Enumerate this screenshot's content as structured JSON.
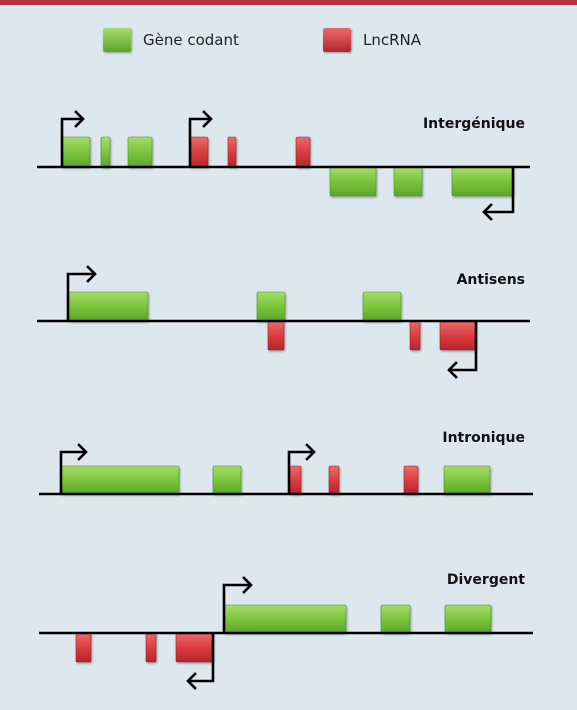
{
  "colors": {
    "background": "#dce8ee",
    "accent_bar": "#b0313f",
    "coding_gene": "#7ec63b",
    "lncrna": "#dd3b3f",
    "axis": "#000000"
  },
  "legend": {
    "coding_label": "Gène codant",
    "lncrna_label": "LncRNA"
  },
  "panels": [
    {
      "title": "Intergénique",
      "features": [
        {
          "kind": "coding",
          "strand": "+"
        },
        {
          "kind": "coding",
          "strand": "+"
        },
        {
          "kind": "coding",
          "strand": "+"
        },
        {
          "kind": "lncrna",
          "strand": "+"
        },
        {
          "kind": "lncrna",
          "strand": "+"
        },
        {
          "kind": "lncrna",
          "strand": "+"
        },
        {
          "kind": "coding",
          "strand": "-"
        },
        {
          "kind": "coding",
          "strand": "-"
        },
        {
          "kind": "coding",
          "strand": "-"
        }
      ]
    },
    {
      "title": "Antisens",
      "features": [
        {
          "kind": "coding",
          "strand": "+"
        },
        {
          "kind": "coding",
          "strand": "+"
        },
        {
          "kind": "coding",
          "strand": "+"
        },
        {
          "kind": "lncrna",
          "strand": "-"
        },
        {
          "kind": "lncrna",
          "strand": "-"
        },
        {
          "kind": "lncrna",
          "strand": "-"
        }
      ]
    },
    {
      "title": "Intronique",
      "features": [
        {
          "kind": "coding",
          "strand": "+"
        },
        {
          "kind": "coding",
          "strand": "+"
        },
        {
          "kind": "lncrna",
          "strand": "+"
        },
        {
          "kind": "lncrna",
          "strand": "+"
        },
        {
          "kind": "lncrna",
          "strand": "+"
        },
        {
          "kind": "coding",
          "strand": "+"
        }
      ]
    },
    {
      "title": "Divergent",
      "features": [
        {
          "kind": "coding",
          "strand": "+"
        },
        {
          "kind": "coding",
          "strand": "+"
        },
        {
          "kind": "coding",
          "strand": "+"
        },
        {
          "kind": "lncrna",
          "strand": "-"
        },
        {
          "kind": "lncrna",
          "strand": "-"
        },
        {
          "kind": "lncrna",
          "strand": "-"
        }
      ]
    }
  ]
}
